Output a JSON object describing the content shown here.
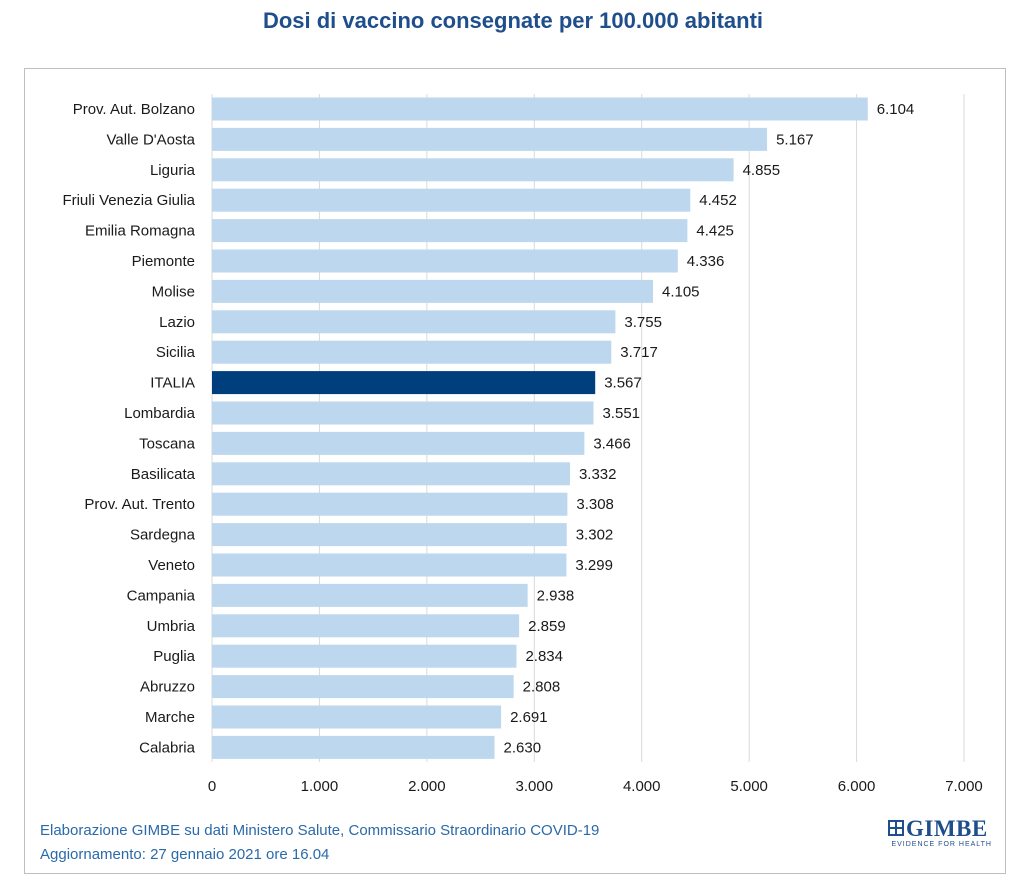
{
  "chart_data": {
    "type": "bar",
    "orientation": "horizontal",
    "title": "Dosi di vaccino consegnate per 100.000 abitanti",
    "categories": [
      "Prov. Aut. Bolzano",
      "Valle D'Aosta",
      "Liguria",
      "Friuli Venezia Giulia",
      "Emilia Romagna",
      "Piemonte",
      "Molise",
      "Lazio",
      "Sicilia",
      "ITALIA",
      "Lombardia",
      "Toscana",
      "Basilicata",
      "Prov. Aut. Trento",
      "Sardegna",
      "Veneto",
      "Campania",
      "Umbria",
      "Puglia",
      "Abruzzo",
      "Marche",
      "Calabria"
    ],
    "values": [
      6104,
      5167,
      4855,
      4452,
      4425,
      4336,
      4105,
      3755,
      3717,
      3567,
      3551,
      3466,
      3332,
      3308,
      3302,
      3299,
      2938,
      2859,
      2834,
      2808,
      2691,
      2630
    ],
    "value_labels": [
      "6.104",
      "5.167",
      "4.855",
      "4.452",
      "4.425",
      "4.336",
      "4.105",
      "3.755",
      "3.717",
      "3.567",
      "3.551",
      "3.466",
      "3.332",
      "3.308",
      "3.302",
      "3.299",
      "2.938",
      "2.859",
      "2.834",
      "2.808",
      "2.691",
      "2.630"
    ],
    "highlight": "ITALIA",
    "xlim": [
      0,
      7000
    ],
    "xticks": [
      0,
      1000,
      2000,
      3000,
      4000,
      5000,
      6000,
      7000
    ],
    "xtick_labels": [
      "0",
      "1.000",
      "2.000",
      "3.000",
      "4.000",
      "5.000",
      "6.000",
      "7.000"
    ],
    "grid": "vertical",
    "legend": "none",
    "colors": {
      "bar": "#bdd7ee",
      "highlight": "#003f7d",
      "grid": "#d9d9d9",
      "title": "#1f4e8c",
      "footer": "#2a6aa9"
    }
  },
  "footer": {
    "line1": "Elaborazione GIMBE su dati Ministero Salute, Commissario Straordinario COVID-19",
    "line2": "Aggiornamento: 27 gennaio 2021 ore 16.04"
  },
  "logo": {
    "text": "GIMBE",
    "tagline": "EVIDENCE FOR HEALTH",
    "icon": "gimbe-logo-icon"
  }
}
